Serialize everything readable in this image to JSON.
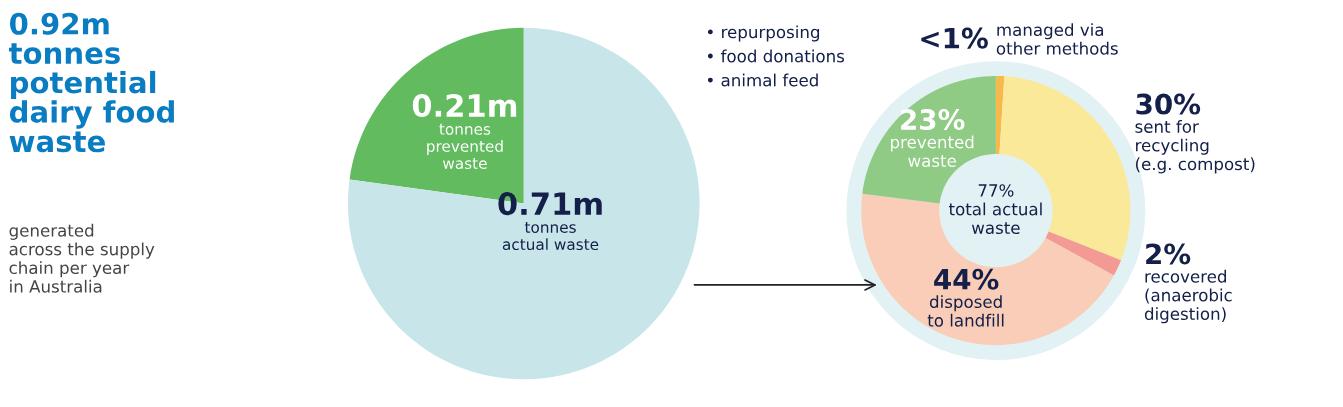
{
  "chart_data": [
    {
      "type": "other",
      "title": "0.92m\ntonnes\npotential\ndairy food\nwaste",
      "subtitle": "generated\nacross the supply\nchain per year\nin Australia",
      "color": "#0a7cc1"
    },
    {
      "type": "pie",
      "categories": [
        "tonnes\nprevented\nwaste",
        "tonnes\nactual waste"
      ],
      "values": [
        0.21,
        0.71
      ],
      "value_labels": [
        "0.21m",
        "0.71m"
      ],
      "colors": [
        "#62bb5f",
        "#c8e6ea"
      ]
    },
    {
      "type": "donut",
      "categories": [
        "managed via\nother methods",
        "sent for\nrecycling\n(e.g. compost)",
        "recovered\n(anaerobic\ndigestion)",
        "disposed\nto landfill",
        "prevented\nwaste"
      ],
      "values": [
        1,
        30,
        2,
        44,
        23
      ],
      "value_labels": [
        "<1%",
        "30%",
        "2%",
        "44%",
        "23%"
      ],
      "colors": [
        "#f6b94a",
        "#fbe99a",
        "#f29a93",
        "#f9cdb7",
        "#8fcb85"
      ],
      "annotations": [
        "• repurposing",
        "• food donations",
        "• animal feed",
        "77%\ntotal actual\nwaste"
      ]
    }
  ]
}
